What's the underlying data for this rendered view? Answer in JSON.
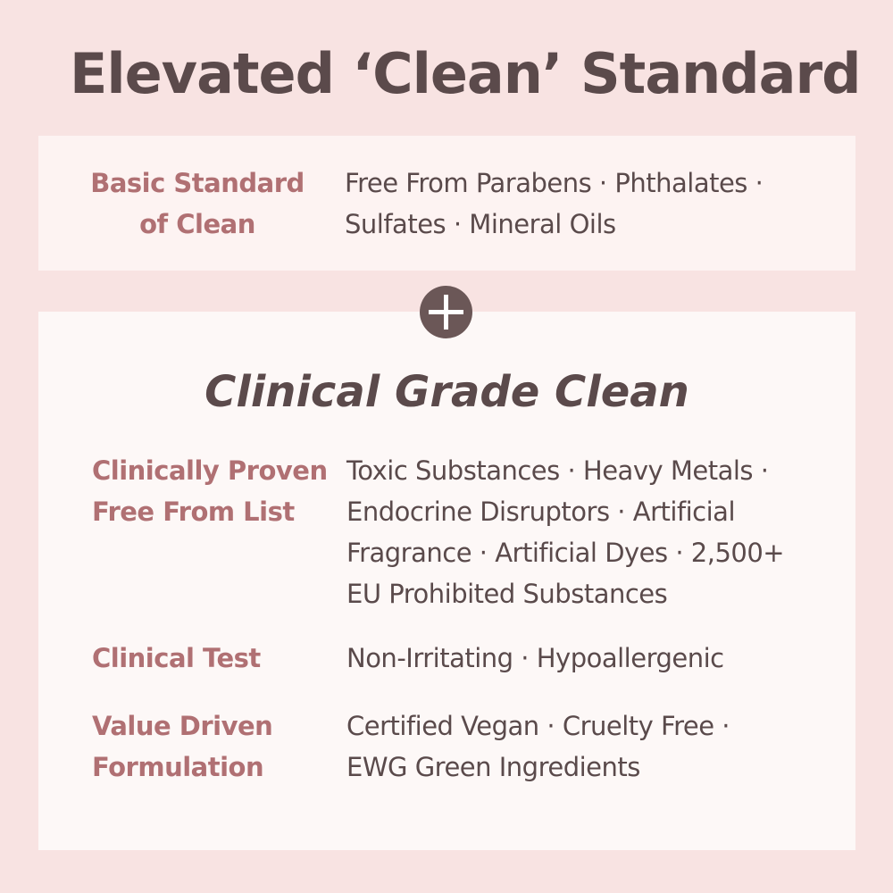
{
  "title": "Elevated ‘Clean’ Standard",
  "basic": {
    "label": [
      "Basic Standard",
      "of Clean"
    ],
    "value": [
      "Free From  Parabens · Phthalates ·",
      "Sulfates ·  Mineral Oils"
    ]
  },
  "clinical": {
    "title": "Clinical Grade Clean",
    "rows": [
      {
        "label": [
          "Clinically Proven",
          "Free From List"
        ],
        "value": [
          "Toxic Substances · Heavy Metals ·",
          "Endocrine Disruptors · Artificial",
          "Fragrance · Artificial Dyes · 2,500+",
          "EU Prohibited Substances"
        ]
      },
      {
        "label": [
          "Clinical Test"
        ],
        "value": [
          "Non-Irritating · Hypoallergenic"
        ]
      },
      {
        "label": [
          "Value Driven",
          "Formulation"
        ],
        "value": [
          "Certified Vegan · Cruelty Free ·",
          "EWG Green Ingredients"
        ]
      }
    ]
  },
  "colors": {
    "background": "#f8e3e2",
    "label": "#b07073",
    "text": "#5a4a4b",
    "plus_circle": "#6b5757"
  },
  "icons": {
    "plus": "plus-circle-icon"
  }
}
